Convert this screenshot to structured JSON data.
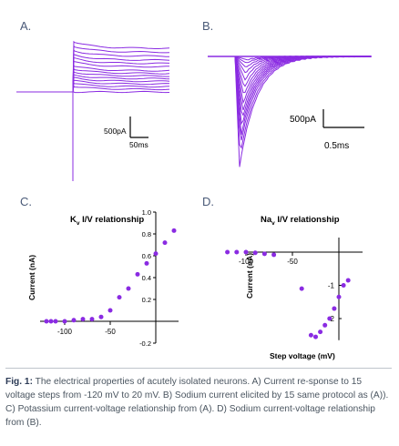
{
  "panels": {
    "a": {
      "letter": "A.",
      "scalebar_y": "500pA",
      "scalebar_x": "50ms"
    },
    "b": {
      "letter": "B.",
      "scalebar_y": "500pA",
      "scalebar_x": "0.5ms"
    },
    "c": {
      "letter": "C.",
      "title_prefix": "K",
      "title_sub": "v",
      "title_suffix": " I/V relationship",
      "ylabel": "Current (nA)"
    },
    "d": {
      "letter": "D.",
      "title_prefix": "Na",
      "title_sub": "v",
      "title_suffix": " I/V relationship",
      "ylabel": "Current (nA)",
      "xlabel": "Step voltage (mV)"
    }
  },
  "caption": {
    "label": "Fig. 1:",
    "text": " The electrical properties of acutely isolated neurons. A) Current re-sponse to 15 voltage steps from -120 mV to 20 mV. B) Sodium current elicited by 15 same protocol as (A)). C) Potassium current-voltage relationship from (A). D) Sodium current-voltage relationship from (B)."
  },
  "colors": {
    "trace": "#8a2be2",
    "point": "#8a2be2",
    "axis": "#000000",
    "letter": "#4a5a78"
  },
  "chart_data": [
    {
      "type": "line",
      "panel": "A",
      "description_of_axes": "current traces vs time; no printed axes, scale bars only",
      "series": [
        {
          "values_pA_steady": [
            0,
            40,
            80,
            120,
            160,
            200,
            240,
            280,
            320,
            380,
            430,
            480,
            540,
            600,
            660
          ]
        }
      ]
    },
    {
      "type": "line",
      "panel": "B",
      "series": [
        {
          "peak_pA": [
            -60,
            -120,
            -200,
            -300,
            -420,
            -560,
            -700,
            -840,
            -980,
            -1120,
            -1260,
            -1400,
            -1560,
            -1760,
            -1960
          ]
        }
      ]
    },
    {
      "type": "scatter",
      "panel": "C",
      "title": "Kv I/V relationship",
      "ylabel": "Current (nA)",
      "xlim": [
        -130,
        25
      ],
      "ylim": [
        -0.2,
        1.0
      ],
      "xticks": [
        -100,
        -50
      ],
      "yticks": [
        -0.2,
        0.2,
        0.4,
        0.6,
        0.8,
        1.0
      ],
      "ytick_labels": [
        "-0.2",
        "0.2",
        "0.4",
        "0.6",
        "0.8",
        "1.0"
      ],
      "x": [
        -120,
        -115,
        -110,
        -100,
        -90,
        -80,
        -70,
        -60,
        -50,
        -40,
        -30,
        -20,
        -10,
        0,
        10,
        20
      ],
      "y": [
        0.0,
        0.0,
        0.0,
        0.0,
        0.01,
        0.02,
        0.02,
        0.04,
        0.1,
        0.22,
        0.3,
        0.43,
        0.53,
        0.62,
        0.72,
        0.83
      ]
    },
    {
      "type": "scatter",
      "panel": "D",
      "title": "Nav I/V relationship",
      "xlabel": "Step voltage (mV)",
      "ylabel": "Current (nA)",
      "xlim": [
        -125,
        25
      ],
      "ylim": [
        -3.0,
        0.5
      ],
      "xticks": [
        -100,
        -50
      ],
      "yticks": [
        -1,
        -2
      ],
      "x": [
        -120,
        -110,
        -100,
        -90,
        -80,
        -70,
        -40,
        -30,
        -25,
        -20,
        -15,
        -10,
        -5,
        0,
        5,
        10
      ],
      "y": [
        0.0,
        0.0,
        0.0,
        -0.02,
        -0.05,
        -0.08,
        -1.1,
        -2.5,
        -2.55,
        -2.4,
        -2.2,
        -2.0,
        -1.7,
        -1.35,
        -1.0,
        -0.85
      ]
    }
  ]
}
